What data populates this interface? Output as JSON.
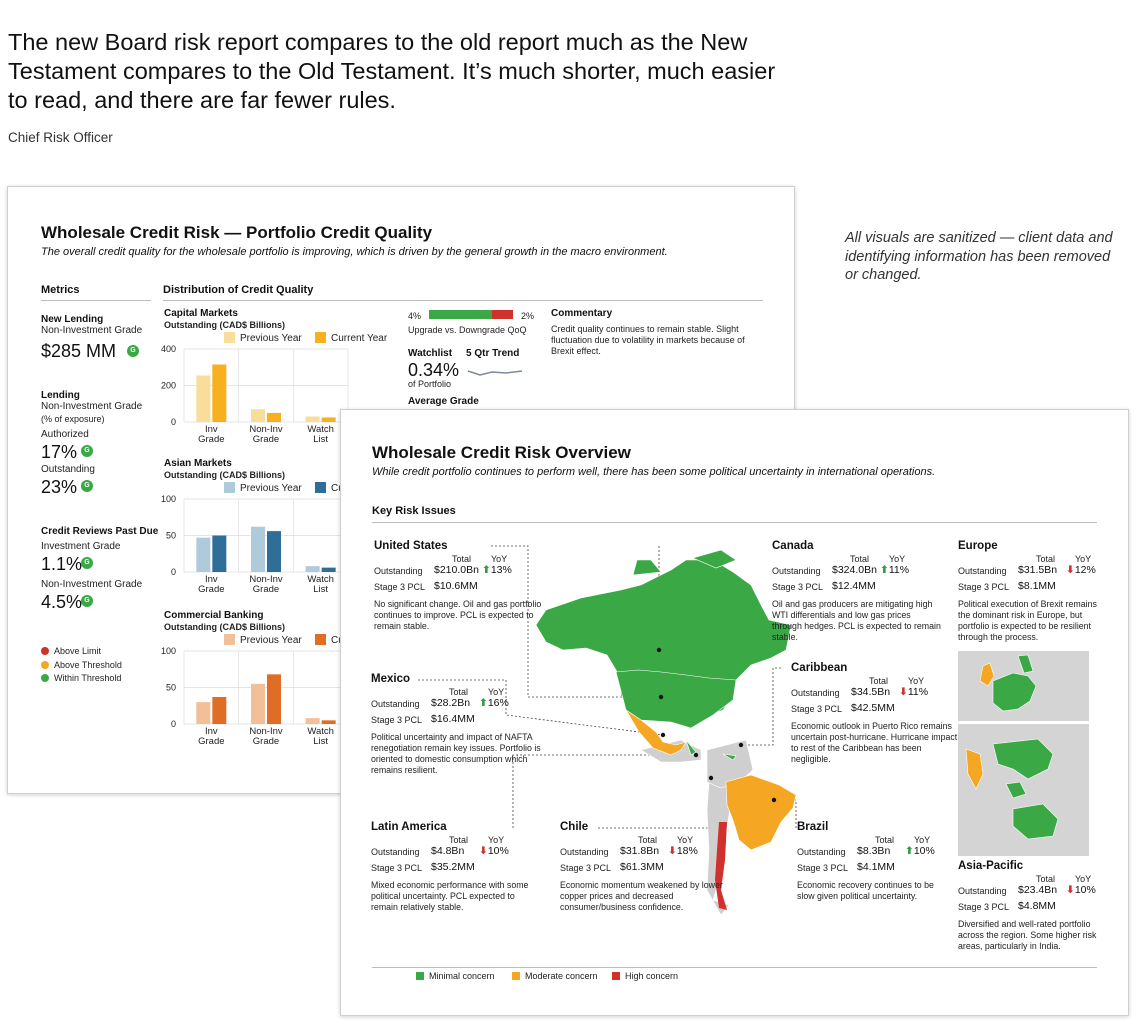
{
  "quote": {
    "text": "The new Board risk report compares to the old report much as the New Testament compares to the Old Testament. It’s much shorter, much easier to read, and there are far fewer rules.",
    "attribution": "Chief Risk Officer"
  },
  "disclaimer": "All visuals are sanitized — client data and identifying information has been removed or changed.",
  "report1": {
    "title": "Wholesale Credit Risk — Portfolio Credit Quality",
    "subtitle": "The overall credit quality for the wholesale portfolio is improving, which is driven by the general growth in the macro environment.",
    "metrics_heading": "Metrics",
    "distribution_heading": "Distribution of Credit Quality",
    "m1": {
      "title": "New Lending",
      "sub": "Non-Investment Grade",
      "value": "$285 MM",
      "badge": "G"
    },
    "m2": {
      "title": "Lending",
      "sub": "Non-Investment Grade",
      "sub2": "(% of exposure)",
      "l1": "Authorized",
      "v1": "17%",
      "l2": "Outstanding",
      "v2": "23%",
      "badge": "G"
    },
    "m3": {
      "title": "Credit Reviews Past Due",
      "l1": "Investment Grade",
      "v1": "1.1%",
      "l2": "Non-Investment Grade",
      "v2": "4.5%",
      "badge": "G"
    },
    "legend": [
      "Above Limit",
      "Above Threshold",
      "Within Threshold"
    ],
    "legend_colors": [
      "#d0312d",
      "#f5a623",
      "#3aa845"
    ],
    "upgrade": {
      "left": "4%",
      "right": "2%",
      "label": "Upgrade vs. Downgrade QoQ"
    },
    "watchlist": {
      "label": "Watchlist",
      "trend_label": "5 Qtr Trend",
      "value": "0.34%",
      "sub": "of Portfolio"
    },
    "average_grade": "Average Grade",
    "commentary": {
      "title": "Commentary",
      "text": "Credit quality continues to remain stable. Slight fluctuation due to volatility in markets because of Brexit effect."
    }
  },
  "chart_data": [
    {
      "type": "bar",
      "title": "Capital Markets",
      "subtitle": "Outstanding (CAD$ Billions)",
      "categories": [
        "Inv Grade",
        "Non-Inv Grade",
        "Watch List"
      ],
      "ylim": [
        0,
        400
      ],
      "yticks": [
        0,
        200,
        400
      ],
      "series": [
        {
          "name": "Previous Year",
          "color": "#f9dd9a",
          "values": [
            255,
            70,
            30
          ]
        },
        {
          "name": "Current Year",
          "color": "#f7b11e",
          "values": [
            315,
            50,
            25
          ]
        }
      ]
    },
    {
      "type": "bar",
      "title": "Asian Markets",
      "subtitle": "Outstanding (CAD$ Billions)",
      "categories": [
        "Inv Grade",
        "Non-Inv Grade",
        "Watch List"
      ],
      "ylim": [
        0,
        100
      ],
      "yticks": [
        0,
        50,
        100
      ],
      "series": [
        {
          "name": "Previous Year",
          "color": "#aecadb",
          "values": [
            47,
            62,
            8
          ]
        },
        {
          "name": "Current Year",
          "color": "#2f6e99",
          "values": [
            50,
            56,
            6
          ]
        }
      ]
    },
    {
      "type": "bar",
      "title": "Commercial Banking",
      "subtitle": "Outstanding (CAD$ Billions)",
      "categories": [
        "Inv Grade",
        "Non-Inv Grade",
        "Watch List"
      ],
      "ylim": [
        0,
        100
      ],
      "yticks": [
        0,
        50,
        100
      ],
      "series": [
        {
          "name": "Previous Year",
          "color": "#f2bf97",
          "values": [
            30,
            55,
            8
          ]
        },
        {
          "name": "Current Year",
          "color": "#e06d25",
          "values": [
            37,
            68,
            5
          ]
        }
      ]
    }
  ],
  "report2": {
    "title": "Wholesale Credit Risk Overview",
    "subtitle": "While credit portfolio continues to perform well, there has been some political uncertainty in international operations.",
    "key_heading": "Key Risk Issues",
    "labels": {
      "total": "Total",
      "yoy": "YoY",
      "outstanding": "Outstanding",
      "pcl": "Stage 3 PCL"
    },
    "regions": {
      "us": {
        "name": "United States",
        "total": "$210.0Bn",
        "yoy": "13%",
        "dir": "up",
        "pcl": "$10.6MM",
        "note": "No significant change. Oil and gas portfolio continues to improve. PCL is expected to remain stable."
      },
      "canada": {
        "name": "Canada",
        "total": "$324.0Bn",
        "yoy": "11%",
        "dir": "up",
        "pcl": "$12.4MM",
        "note": "Oil and gas producers are mitigating high WTI differentials and low gas prices through hedges. PCL is expected to remain stable."
      },
      "europe": {
        "name": "Europe",
        "total": "$31.5Bn",
        "yoy": "12%",
        "dir": "down",
        "pcl": "$8.1MM",
        "note": "Political execution of Brexit remains the dominant risk in Europe, but portfolio is expected to be resilient through the process."
      },
      "mexico": {
        "name": "Mexico",
        "total": "$28.2Bn",
        "yoy": "16%",
        "dir": "up",
        "pcl": "$16.4MM",
        "note": "Political uncertainty and impact of NAFTA renegotiation remain key issues. Portfolio is oriented to domestic consumption which remains resilient."
      },
      "caribbean": {
        "name": "Caribbean",
        "total": "$34.5Bn",
        "yoy": "11%",
        "dir": "down",
        "pcl": "$42.5MM",
        "note": "Economic outlook in Puerto Rico remains uncertain post-hurricane. Hurricane impact to rest of the Caribbean has been negligible."
      },
      "latam": {
        "name": "Latin America",
        "total": "$4.8Bn",
        "yoy": "10%",
        "dir": "down",
        "pcl": "$35.2MM",
        "note": "Mixed economic performance with some political uncertainty. PCL expected to remain relatively stable."
      },
      "chile": {
        "name": "Chile",
        "total": "$31.8Bn",
        "yoy": "18%",
        "dir": "down",
        "pcl": "$61.3MM",
        "note": "Economic momentum weakened by lower copper prices and decreased consumer/business confidence."
      },
      "brazil": {
        "name": "Brazil",
        "total": "$8.3Bn",
        "yoy": "10%",
        "dir": "up",
        "pcl": "$4.1MM",
        "note": "Economic recovery continues to be slow given political uncertainty."
      },
      "apac": {
        "name": "Asia-Pacific",
        "total": "$23.4Bn",
        "yoy": "10%",
        "dir": "down",
        "pcl": "$4.8MM",
        "note": "Diversified and well-rated portfolio across the region. Some  higher risk areas, particularly in India."
      }
    },
    "legend": [
      "Minimal concern",
      "Moderate concern",
      "High concern"
    ],
    "legend_colors": [
      "#3aa845",
      "#f5a623",
      "#d0312d"
    ]
  }
}
